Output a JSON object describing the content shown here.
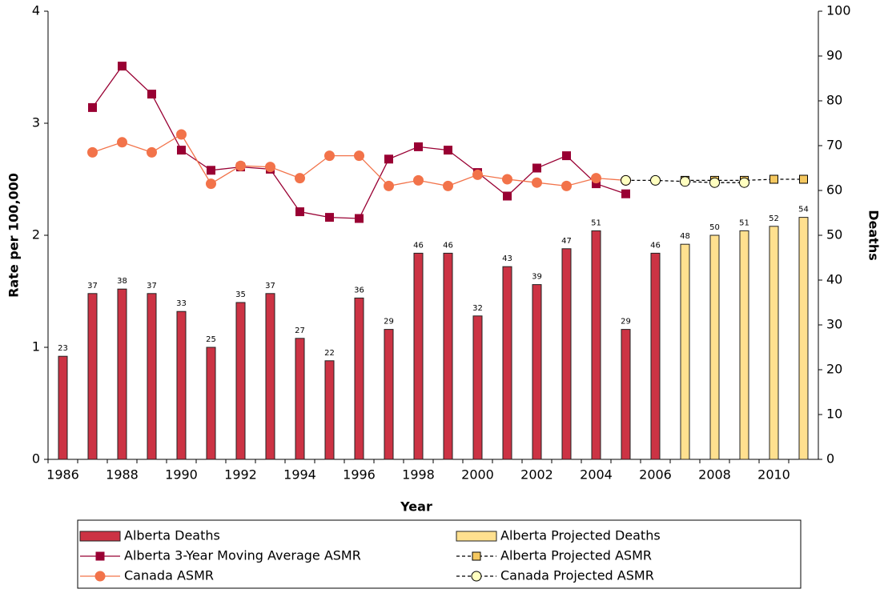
{
  "chart_data": {
    "type": "bar",
    "x_label": "Year",
    "y_label": "Rate per 100,000",
    "y2_label": "Deaths",
    "categories": [
      "1986",
      null,
      "1988",
      null,
      "1990",
      null,
      "1992",
      null,
      "1994",
      null,
      "1996",
      null,
      "1998",
      null,
      "2000",
      null,
      "2002",
      null,
      "2004",
      null,
      "2006",
      null,
      "2008",
      null,
      "2010",
      null
    ],
    "ylim": [
      0,
      4
    ],
    "yticks": [
      0,
      1,
      2,
      3,
      4
    ],
    "y2lim": [
      0,
      100
    ],
    "y2ticks": [
      0,
      10,
      20,
      30,
      40,
      50,
      60,
      70,
      80,
      90,
      100
    ],
    "grid": false,
    "data_labels": true,
    "legend": "bottom",
    "series": [
      {
        "name": "Alberta Deaths",
        "type": "bar",
        "axis": "y2",
        "color": "#cc3344",
        "values": [
          23,
          37,
          38,
          37,
          33,
          25,
          35,
          37,
          27,
          22,
          36,
          29,
          46,
          46,
          32,
          43,
          39,
          47,
          51,
          29,
          46,
          null,
          null,
          null,
          null,
          null
        ]
      },
      {
        "name": "Alberta Projected Deaths",
        "type": "bar",
        "axis": "y2",
        "color": "#ffe08f",
        "values": [
          null,
          null,
          null,
          null,
          null,
          null,
          null,
          null,
          null,
          null,
          null,
          null,
          null,
          null,
          null,
          null,
          null,
          null,
          null,
          null,
          null,
          48,
          50,
          51,
          52,
          54
        ]
      },
      {
        "name": "Alberta 3-Year Moving Average ASMR",
        "type": "line",
        "marker": "square",
        "dashed": false,
        "color": "#990033",
        "values": [
          null,
          3.14,
          3.51,
          3.26,
          2.76,
          2.58,
          2.61,
          2.59,
          2.21,
          2.16,
          2.15,
          2.68,
          2.79,
          2.76,
          2.56,
          2.35,
          2.6,
          2.71,
          2.46,
          2.37,
          null,
          null,
          null,
          null,
          null,
          null
        ]
      },
      {
        "name": "Alberta Projected ASMR",
        "type": "line",
        "marker": "square",
        "dashed": true,
        "color": "#f5c860",
        "values": [
          null,
          null,
          null,
          null,
          null,
          null,
          null,
          null,
          null,
          null,
          null,
          null,
          null,
          null,
          null,
          null,
          null,
          null,
          null,
          null,
          null,
          2.49,
          2.49,
          2.49,
          2.5,
          2.5
        ]
      },
      {
        "name": "Canada ASMR",
        "type": "line",
        "marker": "circle",
        "dashed": false,
        "color": "#f2734a",
        "values": [
          null,
          2.74,
          2.83,
          2.74,
          2.9,
          2.46,
          2.62,
          2.61,
          2.51,
          2.71,
          2.71,
          2.44,
          2.49,
          2.44,
          2.54,
          2.5,
          2.47,
          2.44,
          2.51,
          2.49,
          null,
          null,
          null,
          null,
          null,
          null
        ]
      },
      {
        "name": "Canada Projected ASMR",
        "type": "line",
        "marker": "circle",
        "dashed": true,
        "color": "#ffffc0",
        "values": [
          null,
          null,
          null,
          null,
          null,
          null,
          null,
          null,
          null,
          null,
          null,
          null,
          null,
          null,
          null,
          null,
          null,
          null,
          null,
          2.49,
          2.49,
          2.48,
          2.47,
          2.47,
          null,
          null
        ]
      }
    ]
  }
}
